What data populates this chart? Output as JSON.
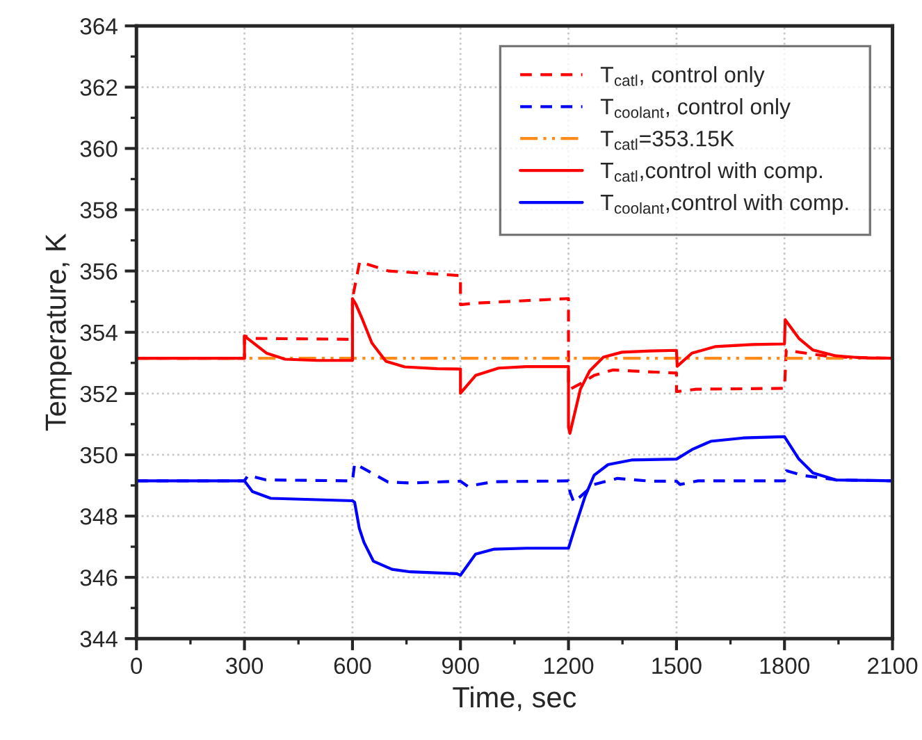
{
  "chart_data": {
    "type": "line",
    "xlabel": "Time, sec",
    "ylabel": "Temperature, K",
    "xlim": [
      0,
      2100
    ],
    "ylim": [
      344,
      364
    ],
    "xticks": [
      0,
      300,
      600,
      900,
      1200,
      1500,
      1800,
      2100
    ],
    "yticks": [
      344,
      346,
      348,
      350,
      352,
      354,
      356,
      358,
      360,
      362,
      364
    ],
    "grid": true,
    "legend": "top right",
    "series": [
      {
        "name": "T$_{catl}$, control only",
        "color": "#ff0000",
        "line_style": "dashed",
        "x": [
          0,
          300,
          300,
          330,
          600,
          600,
          620,
          700,
          900,
          900,
          940,
          1200,
          1200,
          1204,
          1230,
          1271,
          1323,
          1420,
          1500,
          1500,
          1555,
          1800,
          1805,
          1840,
          1930,
          2100
        ],
        "values": [
          353.15,
          353.15,
          353.88,
          353.8,
          353.77,
          355.1,
          356.3,
          356.0,
          355.85,
          354.9,
          354.95,
          355.1,
          352.29,
          352.14,
          352.3,
          352.59,
          352.77,
          352.71,
          352.67,
          352.06,
          352.14,
          352.17,
          353.42,
          353.35,
          353.2,
          353.15
        ]
      },
      {
        "name": "T$_{coolant}$, control only",
        "color": "#0000ff",
        "line_style": "dashed",
        "x": [
          0,
          300,
          310,
          360,
          600,
          606,
          630,
          699,
          761,
          900,
          920,
          990,
          1200,
          1204,
          1215,
          1271,
          1336,
          1427,
          1500,
          1510,
          1560,
          1800,
          1805,
          1850,
          1943,
          2100
        ],
        "values": [
          349.15,
          349.15,
          349.33,
          349.18,
          349.15,
          349.71,
          349.56,
          349.11,
          349.08,
          349.14,
          348.97,
          349.12,
          349.15,
          348.79,
          348.45,
          349.03,
          349.23,
          349.14,
          349.14,
          349.03,
          349.15,
          349.15,
          349.48,
          349.33,
          349.18,
          349.15
        ]
      },
      {
        "name": "T$_{catl}$=353.15K",
        "color": "#ff8c1a",
        "line_style": "dashdot",
        "x": [
          0,
          2100
        ],
        "values": [
          353.15,
          353.15
        ]
      },
      {
        "name": "T$_{catl}$,control with comp.",
        "color": "#ff0000",
        "line_style": "solid",
        "x": [
          0,
          300,
          300,
          361,
          413,
          503,
          600,
          600,
          610,
          628,
          654,
          693,
          745,
          835,
          900,
          900,
          942,
          1006,
          1084,
          1200,
          1200,
          1204,
          1233,
          1259,
          1297,
          1349,
          1427,
          1500,
          1502,
          1543,
          1607,
          1711,
          1800,
          1802,
          1840,
          1879,
          1943,
          2008,
          2100
        ],
        "values": [
          353.15,
          353.15,
          353.88,
          353.32,
          353.12,
          353.08,
          353.08,
          355.1,
          354.9,
          354.41,
          353.65,
          353.05,
          352.87,
          352.81,
          352.8,
          352.01,
          352.59,
          352.83,
          352.88,
          352.88,
          350.9,
          350.7,
          352.14,
          352.74,
          353.19,
          353.35,
          353.39,
          353.41,
          352.89,
          353.32,
          353.53,
          353.6,
          353.62,
          354.41,
          353.8,
          353.42,
          353.23,
          353.17,
          353.15
        ]
      },
      {
        "name": "T$_{coolant}$,control with comp.",
        "color": "#0000ff",
        "line_style": "solid",
        "x": [
          0,
          300,
          322,
          373,
          600,
          606,
          619,
          632,
          658,
          710,
          761,
          890,
          900,
          942,
          994,
          1084,
          1200,
          1217,
          1246,
          1271,
          1310,
          1375,
          1500,
          1543,
          1595,
          1685,
          1800,
          1840,
          1879,
          1943,
          2100
        ],
        "values": [
          349.15,
          349.15,
          348.8,
          348.58,
          348.5,
          348.45,
          347.6,
          347.14,
          346.53,
          346.26,
          346.18,
          346.12,
          346.07,
          346.76,
          346.92,
          346.95,
          346.95,
          347.59,
          348.64,
          349.33,
          349.68,
          349.83,
          349.86,
          350.17,
          350.44,
          350.55,
          350.59,
          349.86,
          349.41,
          349.18,
          349.15
        ]
      }
    ]
  }
}
